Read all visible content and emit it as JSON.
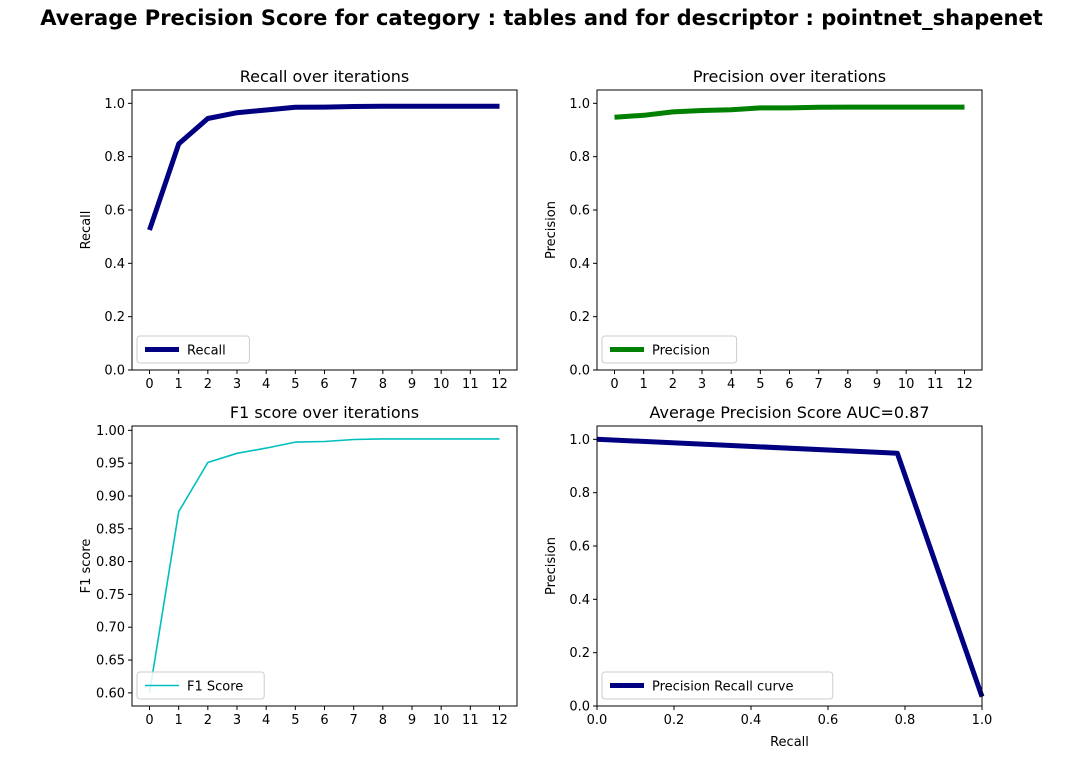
{
  "title": "Average Precision Score for category : tables and for descriptor : pointnet_shapenet",
  "chart_data": [
    {
      "id": "recall",
      "type": "line",
      "title": "Recall over iterations",
      "xlabel": "",
      "ylabel": "Recall",
      "xlim": [
        -0.6,
        12.6
      ],
      "ylim": [
        0.0,
        1.05
      ],
      "xticks": [
        0,
        1,
        2,
        3,
        4,
        5,
        6,
        7,
        8,
        9,
        10,
        11,
        12
      ],
      "yticks": [
        0.0,
        0.2,
        0.4,
        0.6,
        0.8,
        1.0
      ],
      "ytick_labels": [
        "0.0",
        "0.2",
        "0.4",
        "0.6",
        "0.8",
        "1.0"
      ],
      "legend_position": "lower-left",
      "series": [
        {
          "name": "Recall",
          "color": "#000080",
          "thick": true,
          "x": [
            0,
            1,
            2,
            3,
            4,
            5,
            6,
            7,
            8,
            9,
            10,
            11,
            12
          ],
          "y": [
            0.525,
            0.848,
            0.943,
            0.965,
            0.975,
            0.985,
            0.986,
            0.988,
            0.989,
            0.989,
            0.989,
            0.989,
            0.989
          ]
        }
      ]
    },
    {
      "id": "precision",
      "type": "line",
      "title": "Precision over iterations",
      "xlabel": "",
      "ylabel": "Precision",
      "xlim": [
        -0.6,
        12.6
      ],
      "ylim": [
        0.0,
        1.05
      ],
      "xticks": [
        0,
        1,
        2,
        3,
        4,
        5,
        6,
        7,
        8,
        9,
        10,
        11,
        12
      ],
      "yticks": [
        0.0,
        0.2,
        0.4,
        0.6,
        0.8,
        1.0
      ],
      "ytick_labels": [
        "0.0",
        "0.2",
        "0.4",
        "0.6",
        "0.8",
        "1.0"
      ],
      "legend_position": "lower-left",
      "series": [
        {
          "name": "Precision",
          "color": "#008000",
          "thick": true,
          "x": [
            0,
            1,
            2,
            3,
            4,
            5,
            6,
            7,
            8,
            9,
            10,
            11,
            12
          ],
          "y": [
            0.948,
            0.955,
            0.968,
            0.973,
            0.976,
            0.983,
            0.983,
            0.985,
            0.986,
            0.986,
            0.986,
            0.986,
            0.986
          ]
        }
      ]
    },
    {
      "id": "f1",
      "type": "line",
      "title": "F1 score over iterations",
      "xlabel": "",
      "ylabel": "F1 score",
      "xlim": [
        -0.6,
        12.6
      ],
      "ylim": [
        0.58,
        1.0066
      ],
      "xticks": [
        0,
        1,
        2,
        3,
        4,
        5,
        6,
        7,
        8,
        9,
        10,
        11,
        12
      ],
      "yticks": [
        0.6,
        0.65,
        0.7,
        0.75,
        0.8,
        0.85,
        0.9,
        0.95,
        1.0
      ],
      "ytick_labels": [
        "0.60",
        "0.65",
        "0.70",
        "0.75",
        "0.80",
        "0.85",
        "0.90",
        "0.95",
        "1.00"
      ],
      "legend_position": "lower-left",
      "series": [
        {
          "name": "F1 Score",
          "color": "#00bfbf",
          "thick": false,
          "x": [
            0,
            1,
            2,
            3,
            4,
            5,
            6,
            7,
            8,
            9,
            10,
            11,
            12
          ],
          "y": [
            0.6,
            0.876,
            0.951,
            0.965,
            0.973,
            0.982,
            0.983,
            0.986,
            0.987,
            0.987,
            0.987,
            0.987,
            0.987
          ]
        }
      ]
    },
    {
      "id": "pr",
      "type": "line",
      "title": "Average Precision Score AUC=0.87",
      "xlabel": "Recall",
      "ylabel": "Precision",
      "xlim": [
        0.0,
        1.0
      ],
      "ylim": [
        0.0,
        1.05
      ],
      "xticks": [
        0.0,
        0.2,
        0.4,
        0.6,
        0.8,
        1.0
      ],
      "xtick_labels": [
        "0.0",
        "0.2",
        "0.4",
        "0.6",
        "0.8",
        "1.0"
      ],
      "yticks": [
        0.0,
        0.2,
        0.4,
        0.6,
        0.8,
        1.0
      ],
      "ytick_labels": [
        "0.0",
        "0.2",
        "0.4",
        "0.6",
        "0.8",
        "1.0"
      ],
      "legend_position": "lower-left",
      "series": [
        {
          "name": "Precision Recall curve",
          "color": "#000080",
          "thick": true,
          "x": [
            0.0,
            0.78,
            1.0
          ],
          "y": [
            1.0,
            0.948,
            0.035
          ]
        }
      ]
    }
  ]
}
